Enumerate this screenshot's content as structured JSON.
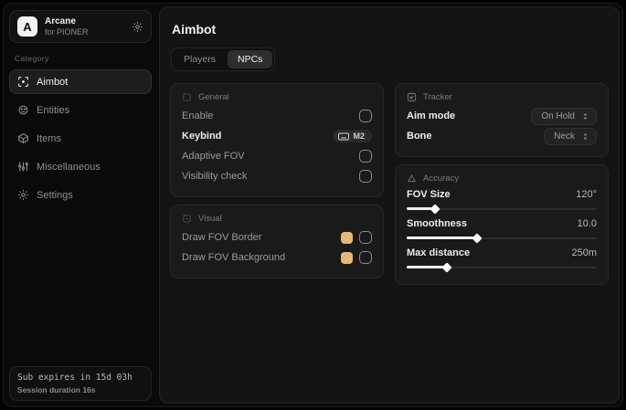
{
  "app": {
    "logo_letter": "A",
    "name": "Arcane",
    "subtitle": "for PIONER"
  },
  "sidebar": {
    "category_label": "Category",
    "items": [
      {
        "label": "Aimbot",
        "icon": "crosshair-icon",
        "selected": true
      },
      {
        "label": "Entities",
        "icon": "entities-icon",
        "selected": false
      },
      {
        "label": "Items",
        "icon": "package-icon",
        "selected": false
      },
      {
        "label": "Miscellaneous",
        "icon": "sliders-icon",
        "selected": false
      },
      {
        "label": "Settings",
        "icon": "gear-icon",
        "selected": false
      }
    ],
    "footer": {
      "sub_expires": "Sub expires in 15d 03h",
      "session_duration": "Session duration 16s"
    }
  },
  "main": {
    "title": "Aimbot",
    "tabs": [
      {
        "label": "Players",
        "active": false
      },
      {
        "label": "NPCs",
        "active": true
      }
    ],
    "panels": {
      "general": {
        "title": "General",
        "rows": [
          {
            "label": "Enable",
            "control": "checkbox",
            "checked": false
          },
          {
            "label": "Keybind",
            "control": "keybind",
            "value": "M2"
          },
          {
            "label": "Adaptive FOV",
            "control": "checkbox",
            "checked": false
          },
          {
            "label": "Visibility check",
            "control": "checkbox",
            "checked": false
          }
        ]
      },
      "visual": {
        "title": "Visual",
        "rows": [
          {
            "label": "Draw FOV Border",
            "control": "color-checkbox",
            "color": "#e6ba72",
            "checked": false
          },
          {
            "label": "Draw FOV Background",
            "control": "color-checkbox",
            "color": "#e6ba72",
            "checked": false
          }
        ]
      },
      "tracker": {
        "title": "Tracker",
        "rows": [
          {
            "label": "Aim mode",
            "control": "dropdown",
            "value": "On Hold"
          },
          {
            "label": "Bone",
            "control": "dropdown",
            "value": "Neck"
          }
        ]
      },
      "accuracy": {
        "title": "Accuracy",
        "sliders": [
          {
            "label": "FOV Size",
            "value": "120°",
            "percent": 15
          },
          {
            "label": "Smoothness",
            "value": "10.0",
            "percent": 37
          },
          {
            "label": "Max distance",
            "value": "250m",
            "percent": 21
          }
        ]
      }
    }
  },
  "colors": {
    "accent_gold": "#e6ba72"
  }
}
